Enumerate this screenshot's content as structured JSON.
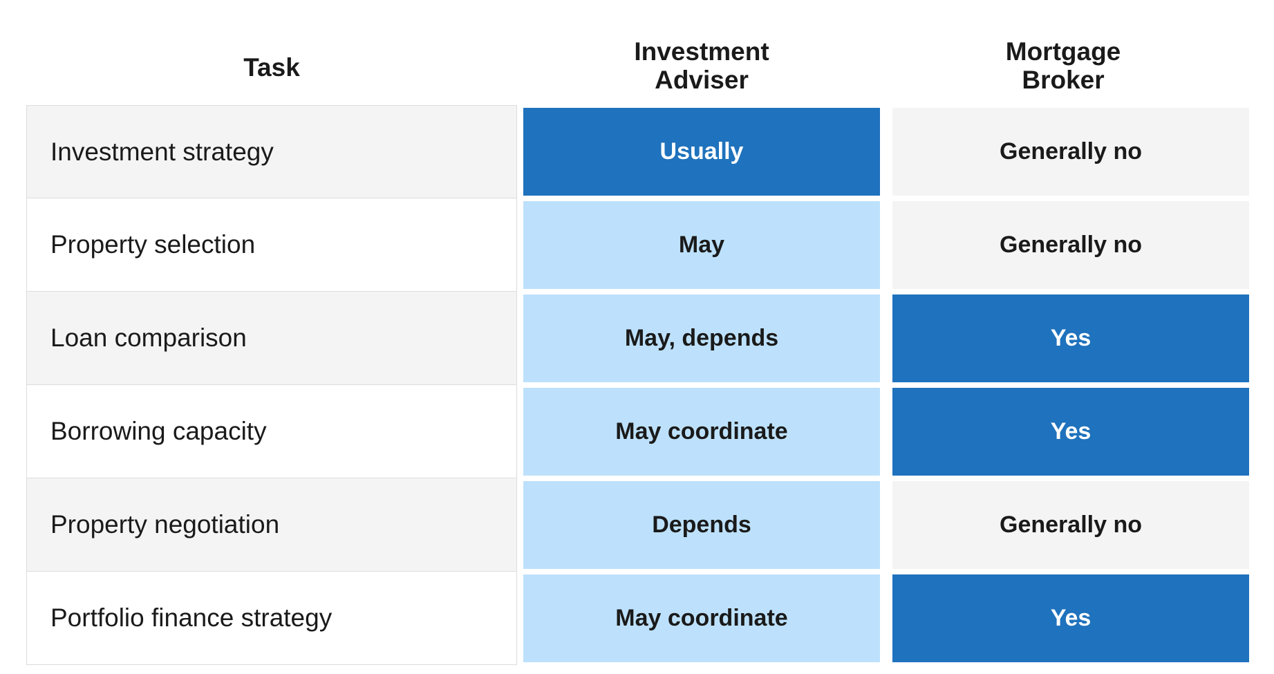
{
  "columns": {
    "task": "Task",
    "investment_adviser": "Investment\nAdviser",
    "investment_adviser_line1": "Investment",
    "investment_adviser_line2": "Adviser",
    "mortgage_broker_line1": "Mortgage",
    "mortgage_broker_line2": "Broker"
  },
  "colors": {
    "high": "#1f72bd",
    "mid": "#bde1fc",
    "low": "#f4f4f4"
  },
  "rows": [
    {
      "task": "Investment strategy",
      "investment_adviser": "Usually",
      "investment_adviser_level": "high",
      "mortgage_broker": "Generally no",
      "mortgage_broker_level": "low"
    },
    {
      "task": "Property selection",
      "investment_adviser": "May",
      "investment_adviser_level": "mid",
      "mortgage_broker": "Generally no",
      "mortgage_broker_level": "low"
    },
    {
      "task": "Loan comparison",
      "investment_adviser": "May, depends",
      "investment_adviser_level": "mid",
      "mortgage_broker": "Yes",
      "mortgage_broker_level": "high"
    },
    {
      "task": "Borrowing capacity",
      "investment_adviser": "May coordinate",
      "investment_adviser_level": "mid",
      "mortgage_broker": "Yes",
      "mortgage_broker_level": "high"
    },
    {
      "task": "Property negotiation",
      "investment_adviser": "Depends",
      "investment_adviser_level": "mid",
      "mortgage_broker": "Generally no",
      "mortgage_broker_level": "low"
    },
    {
      "task": "Portfolio finance strategy",
      "investment_adviser": "May coordinate",
      "investment_adviser_level": "mid",
      "mortgage_broker": "Yes",
      "mortgage_broker_level": "high"
    }
  ]
}
